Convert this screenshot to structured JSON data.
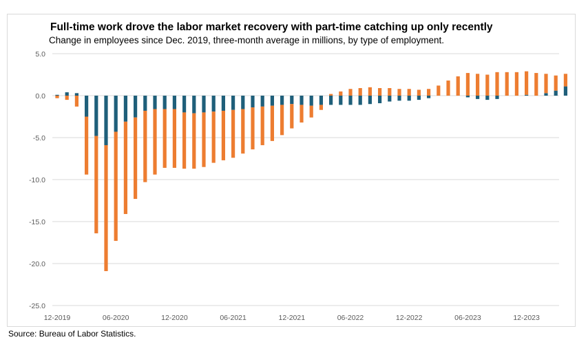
{
  "chart_data": {
    "type": "bar",
    "stacked": true,
    "title": "Full-time work drove the labor market recovery with part-time catching up only recently",
    "subtitle": "Change in employees since Dec. 2019, three-month average in millions, by type of employment.",
    "source": "Source: Bureau of Labor Statistics.",
    "xlabel": "",
    "ylabel": "",
    "ylim": [
      -25,
      5
    ],
    "yticks": [
      5,
      0,
      -5,
      -10,
      -15,
      -20,
      -25
    ],
    "ytick_labels": [
      "5.0",
      "0.0",
      "-5.0",
      "-10.0",
      "-15.0",
      "-20.0",
      "-25.0"
    ],
    "xtick_labels": [
      "12-2019",
      "06-2020",
      "12-2020",
      "06-2021",
      "12-2021",
      "06-2022",
      "12-2022",
      "06-2023",
      "12-2023"
    ],
    "xtick_index": [
      0,
      6,
      12,
      18,
      24,
      30,
      36,
      42,
      48
    ],
    "grid": true,
    "legend": "none",
    "colors": {
      "part_time": "#1f5f7a",
      "full_time": "#ed7d31"
    },
    "series": [
      {
        "key": "part_time",
        "values": [
          0.1,
          0.4,
          0.3,
          -2.5,
          -4.8,
          -5.9,
          -4.3,
          -3.1,
          -2.6,
          -1.8,
          -1.6,
          -1.6,
          -1.6,
          -2.0,
          -2.1,
          -2.0,
          -1.9,
          -1.8,
          -1.7,
          -1.6,
          -1.4,
          -1.3,
          -1.2,
          -1.1,
          -1.0,
          -1.1,
          -1.2,
          -1.1,
          -1.1,
          -1.1,
          -1.1,
          -1.1,
          -1.0,
          -0.9,
          -0.7,
          -0.6,
          -0.6,
          -0.5,
          -0.3,
          0.0,
          0.0,
          0.0,
          -0.2,
          -0.4,
          -0.5,
          -0.4,
          0.0,
          0.0,
          0.1,
          0.0,
          0.3,
          0.6,
          1.1
        ]
      },
      {
        "key": "full_time",
        "values": [
          -0.3,
          -0.5,
          -1.3,
          -6.9,
          -11.6,
          -15.0,
          -13.0,
          -11.0,
          -9.7,
          -8.5,
          -7.8,
          -7.0,
          -7.0,
          -6.7,
          -6.6,
          -6.5,
          -6.1,
          -5.9,
          -5.7,
          -5.3,
          -5.0,
          -4.6,
          -4.2,
          -3.6,
          -2.9,
          -2.1,
          -1.4,
          -0.6,
          0.2,
          0.5,
          0.8,
          0.9,
          1.0,
          0.9,
          0.9,
          0.8,
          0.8,
          0.7,
          0.8,
          1.2,
          1.8,
          2.3,
          2.7,
          2.6,
          2.5,
          2.8,
          2.8,
          2.8,
          2.8,
          2.7,
          2.3,
          1.8,
          1.5
        ]
      }
    ]
  }
}
